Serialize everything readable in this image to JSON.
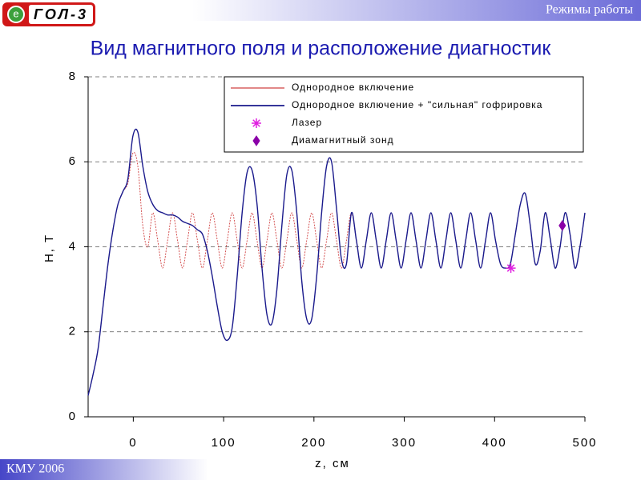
{
  "header": {
    "logo_badge": "e",
    "logo": "ГОЛ-3",
    "section": "Режимы работы"
  },
  "footer": "КМУ 2006",
  "chart_data": {
    "type": "line",
    "title": "Вид магнитного поля и расположение диагностик",
    "xlabel": "z, см",
    "ylabel": "H, T",
    "xlim": [
      -50,
      500
    ],
    "ylim": [
      0,
      8
    ],
    "xticks": [
      0,
      100,
      200,
      300,
      400,
      500
    ],
    "yticks": [
      0,
      2,
      4,
      6,
      8
    ],
    "grid": true,
    "legend": "upper right",
    "x": [
      -50,
      -44.5,
      -39,
      -33.5,
      -28,
      -22.5,
      -17,
      -11.5,
      -6,
      -0.5,
      5,
      10.5,
      16,
      21.5,
      27,
      32.5,
      38,
      43.5,
      49,
      54.5,
      60,
      65.5,
      71,
      76.5,
      82,
      87.5,
      93,
      98.5,
      104,
      109.5,
      115,
      120.5,
      126,
      131.5,
      137,
      142.5,
      148,
      153.5,
      159,
      164.5,
      170,
      175.5,
      181,
      186.5,
      192,
      197.5,
      203,
      208.5,
      214,
      219.5,
      225,
      230.5,
      236,
      241.5,
      247,
      252.5,
      258,
      263.5,
      269,
      274.5,
      280,
      285.5,
      291,
      296.5,
      302,
      307.5,
      313,
      318.5,
      324,
      329.5,
      335,
      340.5,
      346,
      351.5,
      357,
      362.5,
      368,
      373.5,
      379,
      384.5,
      390,
      395.5,
      401,
      406.5,
      412,
      417.5,
      423,
      428.5,
      434,
      439.5,
      445,
      450.5,
      456,
      461.5,
      467,
      472.5,
      478,
      483.5,
      489,
      494.5,
      500
    ],
    "series": [
      {
        "name": "Однородное включение",
        "color": "#d04040",
        "values": [
          0.5,
          1.0,
          1.6,
          2.6,
          3.6,
          4.4,
          5.0,
          5.3,
          5.5,
          6.2,
          5.9,
          4.5,
          4.0,
          4.8,
          4.15,
          3.5,
          4.15,
          4.8,
          4.15,
          3.5,
          4.15,
          4.8,
          4.15,
          3.5,
          4.15,
          4.8,
          4.15,
          3.5,
          4.15,
          4.8,
          4.15,
          3.5,
          4.15,
          4.8,
          4.15,
          3.5,
          4.15,
          4.8,
          4.15,
          3.5,
          4.15,
          4.8,
          4.15,
          3.5,
          4.15,
          4.8,
          4.15,
          3.5,
          4.15,
          4.8,
          4.15,
          3.5,
          4.15,
          4.8,
          4.15,
          3.5,
          4.15,
          4.8,
          4.15,
          3.5,
          4.15,
          4.8,
          4.15,
          3.5,
          4.15,
          4.8,
          4.15,
          3.5,
          4.15,
          4.8,
          4.15,
          3.5,
          4.15,
          4.8,
          4.15,
          3.5,
          4.15,
          4.8,
          4.15,
          3.5,
          4.15,
          4.8,
          4.15,
          3.6,
          3.5,
          3.6,
          4.3,
          5.0,
          5.25,
          4.5,
          3.6,
          3.9,
          4.8,
          4.2,
          3.5,
          4.0,
          4.8,
          4.3,
          3.5,
          4.0,
          4.8
        ]
      },
      {
        "name": "Однородное включение + \"сильная\" гофрировка",
        "color": "#1a1a8c",
        "values": [
          0.5,
          1.0,
          1.6,
          2.6,
          3.6,
          4.4,
          5.0,
          5.3,
          5.6,
          6.6,
          6.7,
          5.9,
          5.3,
          5.0,
          4.85,
          4.8,
          4.75,
          4.75,
          4.7,
          4.6,
          4.55,
          4.5,
          4.4,
          4.3,
          3.9,
          3.3,
          2.6,
          2.0,
          1.8,
          2.1,
          3.3,
          4.8,
          5.75,
          5.8,
          5.0,
          3.5,
          2.4,
          2.2,
          3.0,
          4.5,
          5.7,
          5.8,
          4.8,
          3.2,
          2.3,
          2.3,
          3.3,
          4.8,
          5.9,
          6.0,
          4.9,
          3.7,
          3.6,
          4.8,
          4.15,
          3.5,
          4.15,
          4.8,
          4.15,
          3.5,
          4.15,
          4.8,
          4.15,
          3.5,
          4.15,
          4.8,
          4.15,
          3.5,
          4.15,
          4.8,
          4.15,
          3.5,
          4.15,
          4.8,
          4.15,
          3.5,
          4.15,
          4.8,
          4.15,
          3.5,
          4.15,
          4.8,
          4.15,
          3.6,
          3.5,
          3.6,
          4.3,
          5.0,
          5.25,
          4.5,
          3.6,
          3.9,
          4.8,
          4.2,
          3.5,
          4.0,
          4.8,
          4.3,
          3.5,
          4.0,
          4.8
        ]
      }
    ],
    "points": [
      {
        "name": "Лазер",
        "color": "#e020e0",
        "marker": "star",
        "x": [
          418
        ],
        "values": [
          3.5
        ]
      },
      {
        "name": "Диамагнитный зонд",
        "color": "#8a00a8",
        "marker": "diamond",
        "x": [
          475
        ],
        "values": [
          4.5
        ]
      }
    ]
  }
}
